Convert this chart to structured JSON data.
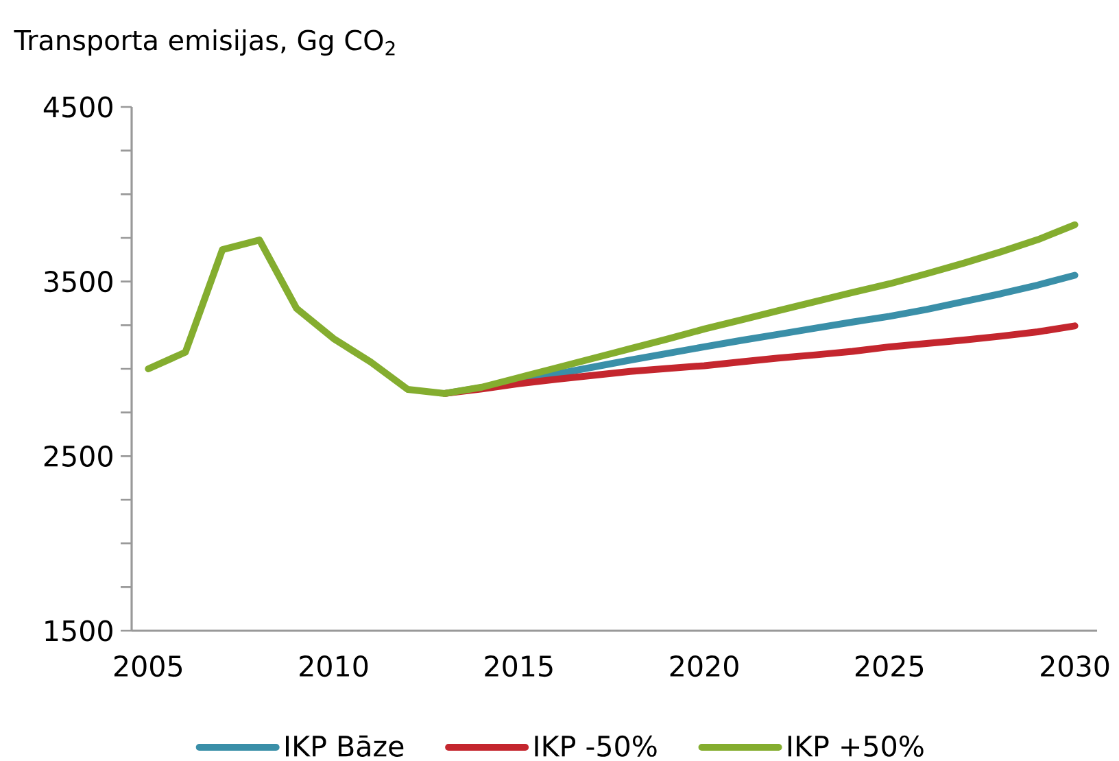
{
  "chart_data": {
    "type": "line",
    "title": "Transporta emisijas, Gg CO$_{2}$",
    "x": [
      2005,
      2006,
      2007,
      2008,
      2009,
      2010,
      2011,
      2012,
      2013,
      2014,
      2015,
      2016,
      2017,
      2018,
      2019,
      2020,
      2021,
      2022,
      2023,
      2024,
      2025,
      2026,
      2027,
      2028,
      2029,
      2030
    ],
    "series": [
      {
        "name": "IKP Bāze",
        "color": "#3a8fa8",
        "values": [
          null,
          null,
          null,
          null,
          null,
          null,
          null,
          null,
          2859,
          2893,
          2930,
          2970,
          3010,
          3050,
          3088,
          3126,
          3163,
          3198,
          3233,
          3268,
          3301,
          3340,
          3385,
          3430,
          3480,
          3536
        ]
      },
      {
        "name": "IKP -50%",
        "color": "#c4262e",
        "values": [
          null,
          null,
          null,
          null,
          null,
          null,
          null,
          null,
          2859,
          2885,
          2915,
          2940,
          2963,
          2985,
          3002,
          3018,
          3040,
          3062,
          3080,
          3100,
          3126,
          3145,
          3165,
          3187,
          3212,
          3246
        ]
      },
      {
        "name": "IKP +50%",
        "color": "#84ad2f",
        "values": [
          3000,
          3095,
          3683,
          3738,
          3346,
          3173,
          3039,
          2882,
          2859,
          2895,
          2950,
          3005,
          3060,
          3115,
          3170,
          3228,
          3280,
          3333,
          3385,
          3437,
          3487,
          3545,
          3605,
          3670,
          3740,
          3825
        ]
      }
    ],
    "xlim": [
      2004.55,
      2030.6
    ],
    "ylim": [
      1500,
      4500
    ],
    "xticks": [
      2005,
      2010,
      2015,
      2020,
      2025,
      2030
    ],
    "yticks": [
      1500,
      {
        "value": 1750,
        "label": null
      },
      {
        "value": 2000,
        "label": null
      },
      {
        "value": 2250,
        "label": null
      },
      2500,
      {
        "value": 2750,
        "label": null
      },
      {
        "value": 3000,
        "label": null
      },
      {
        "value": 3250,
        "label": null
      },
      3500,
      {
        "value": 3750,
        "label": null
      },
      {
        "value": 4000,
        "label": null
      },
      {
        "value": 4250,
        "label": null
      },
      4500
    ],
    "legend": "bottom"
  }
}
